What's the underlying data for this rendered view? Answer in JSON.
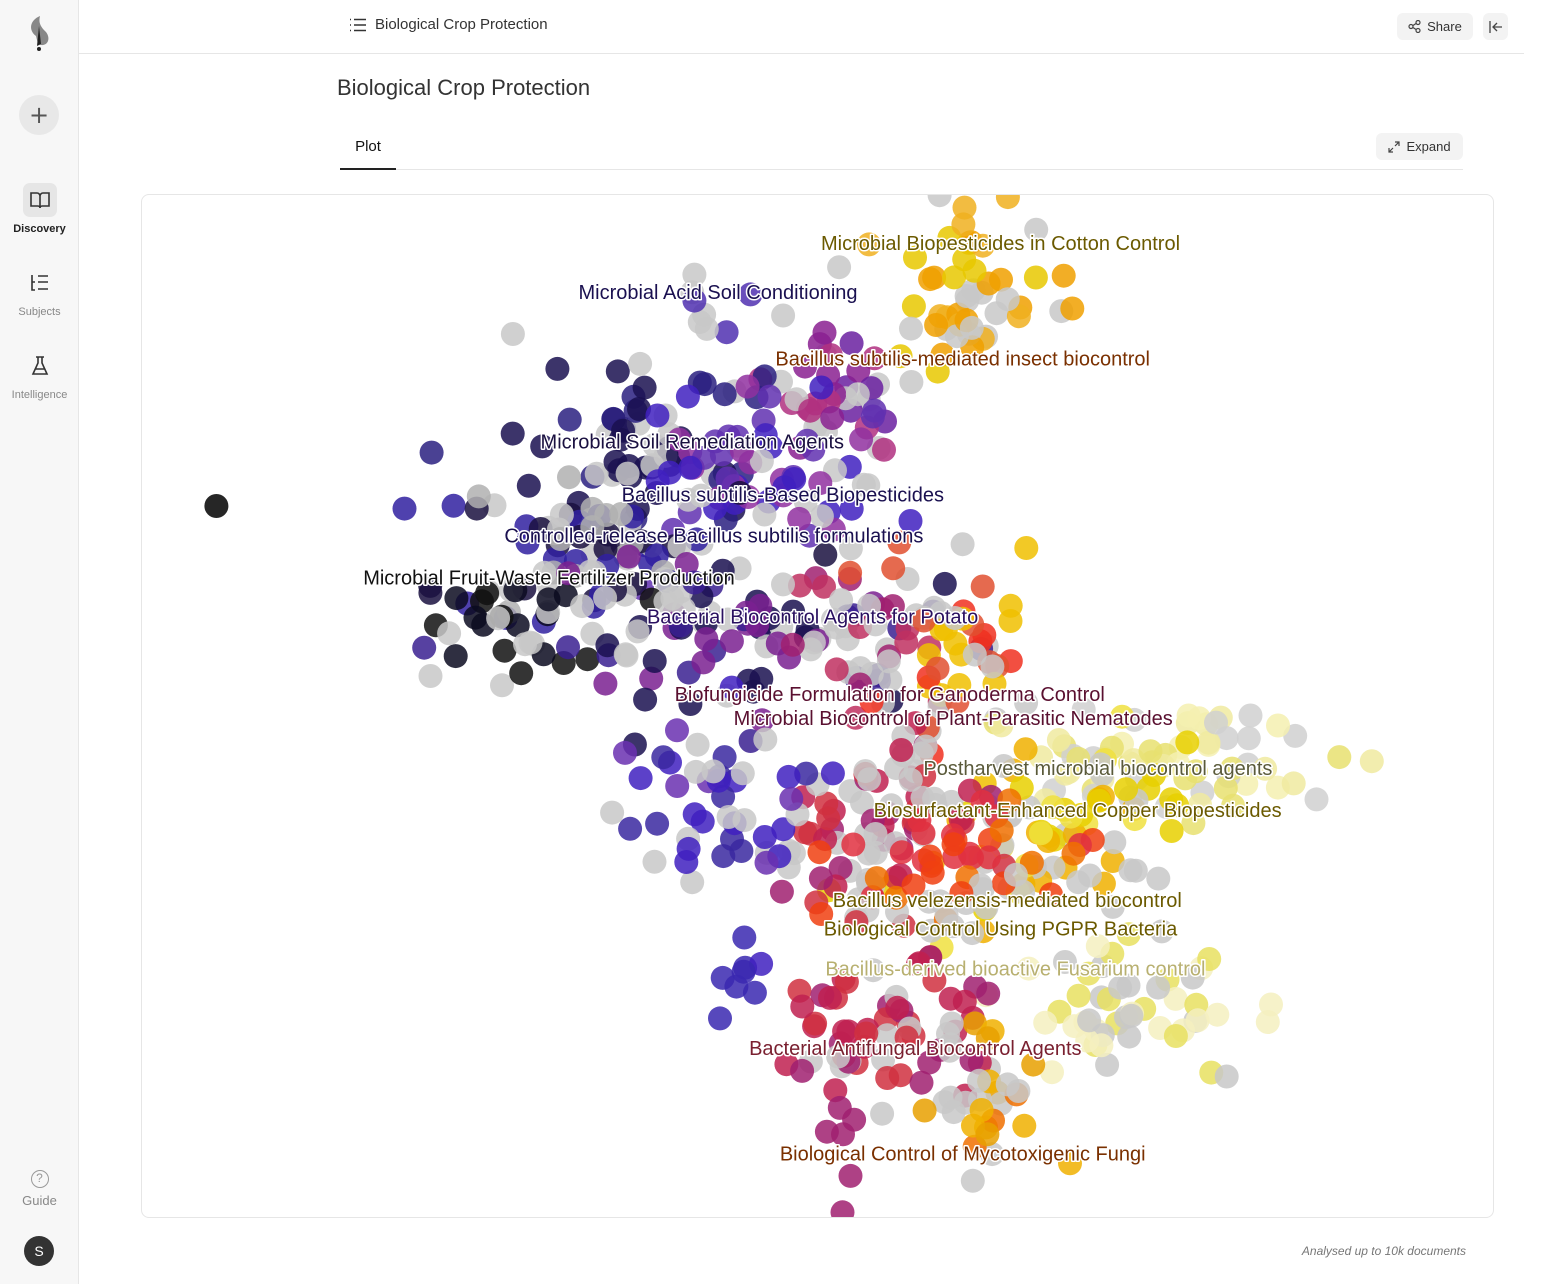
{
  "sidebar": {
    "items": [
      {
        "label": "Discovery"
      },
      {
        "label": "Subjects"
      },
      {
        "label": "Intelligence"
      }
    ],
    "guide": "Guide",
    "avatar": "S"
  },
  "header": {
    "breadcrumb": "Biological Crop Protection",
    "share": "Share"
  },
  "page": {
    "title": "Biological Crop Protection",
    "tabs": [
      {
        "label": "Plot"
      }
    ],
    "expand": "Expand",
    "footer": "Analysed up to 10k documents"
  },
  "chart_data": {
    "type": "scatter",
    "title": "",
    "xlabel": "",
    "ylabel": "",
    "xlim": [
      0,
      100
    ],
    "ylim": [
      0,
      100
    ],
    "y_inverted": true,
    "grid": false,
    "clusters": [
      {
        "label": "Microbial Biopesticides in Cotton Control",
        "label_color": "#6b5a00",
        "label_x": 63.5,
        "label_y": 4.7,
        "x": 61.7,
        "y": 9.4,
        "sx": 3,
        "sy": 5,
        "n": 50,
        "colors": [
          "#f0a000",
          "#e8c800",
          "#f0b020",
          "#c8c8c8"
        ]
      },
      {
        "label": "Microbial Acid Soil Conditioning",
        "label_color": "#1a1050",
        "label_x": 42.6,
        "label_y": 9.5,
        "x": 42.2,
        "y": 10.4,
        "sx": 1.2,
        "sy": 1.2,
        "n": 8,
        "colors": [
          "#5030b0",
          "#c8c8c8"
        ]
      },
      {
        "label": "Bacillus subtilis-mediated insect biocontrol",
        "label_color": "#7a3000",
        "label_x": 60.7,
        "label_y": 16.0,
        "x": 51.0,
        "y": 20.1,
        "sx": 3,
        "sy": 3,
        "n": 35,
        "colors": [
          "#8a2090",
          "#b03080",
          "#6a20a0",
          "#c8c8c8"
        ]
      },
      {
        "label": "Microbial Soil Remediation Agents",
        "label_color": "#1a1040",
        "label_x": 40.7,
        "label_y": 24.1,
        "x": 36.9,
        "y": 25.0,
        "sx": 5,
        "sy": 4,
        "n": 60,
        "colors": [
          "#1a1050",
          "#2a2080",
          "#c8c8c8"
        ]
      },
      {
        "label": "Bacillus subtilis-Based Biopesticides",
        "label_color": "#1a1050",
        "label_x": 47.4,
        "label_y": 29.3,
        "x": 46.5,
        "y": 28.0,
        "sx": 5,
        "sy": 4,
        "n": 60,
        "colors": [
          "#4020c0",
          "#6030b0",
          "#9030a0",
          "#c8c8c8"
        ]
      },
      {
        "label": "Controlled-release Bacillus subtilis formulations",
        "label_color": "#1a1050",
        "label_x": 42.3,
        "label_y": 33.3,
        "x": 33.9,
        "y": 33.8,
        "sx": 6,
        "sy": 3.5,
        "n": 70,
        "colors": [
          "#c8c8c8",
          "#b0b0b0",
          "#1a1040",
          "#3020a0"
        ]
      },
      {
        "label": "Microbial Fruit-Waste Fertilizer Production",
        "label_color": "#111111",
        "label_x": 30.1,
        "label_y": 37.4,
        "x": 28.8,
        "y": 41.6,
        "sx": 4,
        "sy": 3,
        "n": 30,
        "colors": [
          "#0a0a20",
          "#111111",
          "#c8c8c8"
        ]
      },
      {
        "label": "Bacterial Biocontrol Agents for Potato",
        "label_color": "#2a1060",
        "label_x": 49.6,
        "label_y": 41.2,
        "x": 44.3,
        "y": 43.6,
        "sx": 7,
        "sy": 4,
        "n": 80,
        "colors": [
          "#3a2090",
          "#7a2090",
          "#1a1050",
          "#c8c8c8"
        ]
      },
      {
        "label": "Biofungicide Formulation for Ganoderma Control",
        "label_color": "#5a1030",
        "label_x": 55.3,
        "label_y": 48.8,
        "x": 52.4,
        "y": 43.6,
        "sx": 3,
        "sy": 4,
        "n": 30,
        "colors": [
          "#a02070",
          "#c03060",
          "#c8c8c8"
        ]
      },
      {
        "label": "Microbial Biocontrol of Plant-Parasitic Nematodes",
        "label_color": "#5a1030",
        "label_x": 60.0,
        "label_y": 50.2,
        "x": 59.8,
        "y": 44.6,
        "sx": 3,
        "sy": 5,
        "n": 45,
        "colors": [
          "#f03020",
          "#e05030",
          "#f0c000",
          "#c8c8c8"
        ]
      },
      {
        "label": "Postharvest microbial biocontrol agents",
        "label_color": "#5a5a3a",
        "label_x": 70.7,
        "label_y": 56.0,
        "x": 76.1,
        "y": 55.3,
        "sx": 6,
        "sy": 3,
        "n": 60,
        "colors": [
          "#f5f0b0",
          "#f0eaa0",
          "#e8e070",
          "#d0d0d0"
        ]
      },
      {
        "label": "Biosurfactant-Enhanced Copper Biopesticides",
        "label_color": "#6b5a00",
        "label_x": 69.2,
        "label_y": 60.1,
        "x": 66.5,
        "y": 62.2,
        "sx": 5,
        "sy": 5,
        "n": 70,
        "colors": [
          "#e8d000",
          "#f0e040",
          "#f0b000",
          "#c8c8c8"
        ]
      },
      {
        "label": "Bacillus velezensis-mediated biocontrol",
        "label_color": "#6b5a00",
        "label_x": 64.0,
        "label_y": 68.9,
        "x": 54.7,
        "y": 61.2,
        "sx": 4,
        "sy": 5,
        "n": 70,
        "colors": [
          "#c02050",
          "#d03040",
          "#a02070",
          "#c8c8c8"
        ]
      },
      {
        "label": "Biological Control Using PGPR Bacteria",
        "label_color": "#6b5a00",
        "label_x": 63.5,
        "label_y": 71.7,
        "x": 59.8,
        "y": 65.1,
        "sx": 4,
        "sy": 4,
        "n": 50,
        "colors": [
          "#f04010",
          "#f07000",
          "#e03040",
          "#c8c8c8"
        ]
      },
      {
        "label": "Bacillus-derived bioactive Fusarium control",
        "label_color": "#b8b070",
        "label_x": 64.6,
        "label_y": 75.6,
        "x": 73.1,
        "y": 79.8,
        "sx": 5,
        "sy": 4,
        "n": 50,
        "colors": [
          "#f5f0c0",
          "#e8e060",
          "#c8c8c8"
        ]
      },
      {
        "label": "Bacterial Antifungal Biocontrol Agents",
        "label_color": "#7a2030",
        "label_x": 57.2,
        "label_y": 83.4,
        "x": 54.7,
        "y": 81.7,
        "sx": 4,
        "sy": 4,
        "n": 60,
        "colors": [
          "#c02050",
          "#d03040",
          "#a02070",
          "#c8c8c8"
        ]
      },
      {
        "label": "Biological Control of Mycotoxigenic Fungi",
        "label_color": "#7a3000",
        "label_x": 60.7,
        "label_y": 93.7,
        "x": 62.1,
        "y": 87.6,
        "sx": 2,
        "sy": 4,
        "n": 30,
        "colors": [
          "#f0b000",
          "#e8a000",
          "#f07000",
          "#c8c8c8"
        ]
      }
    ],
    "unlabeled_groups": [
      {
        "x": 43.6,
        "y": 59.2,
        "sx": 4,
        "sy": 4,
        "n": 45,
        "colors": [
          "#4020c0",
          "#3a28a0",
          "#6a30b0",
          "#c8c8c8"
        ]
      },
      {
        "x": 44.3,
        "y": 75.4,
        "sx": 0.8,
        "sy": 2.5,
        "n": 8,
        "colors": [
          "#4020c0",
          "#3a28b0"
        ]
      },
      {
        "x": 52.0,
        "y": 92.0,
        "sx": 0.6,
        "sy": 4,
        "n": 6,
        "colors": [
          "#a02070"
        ]
      },
      {
        "x": 5.5,
        "y": 30.4,
        "sx": 0,
        "sy": 0,
        "n": 1,
        "colors": [
          "#000000"
        ]
      }
    ]
  }
}
